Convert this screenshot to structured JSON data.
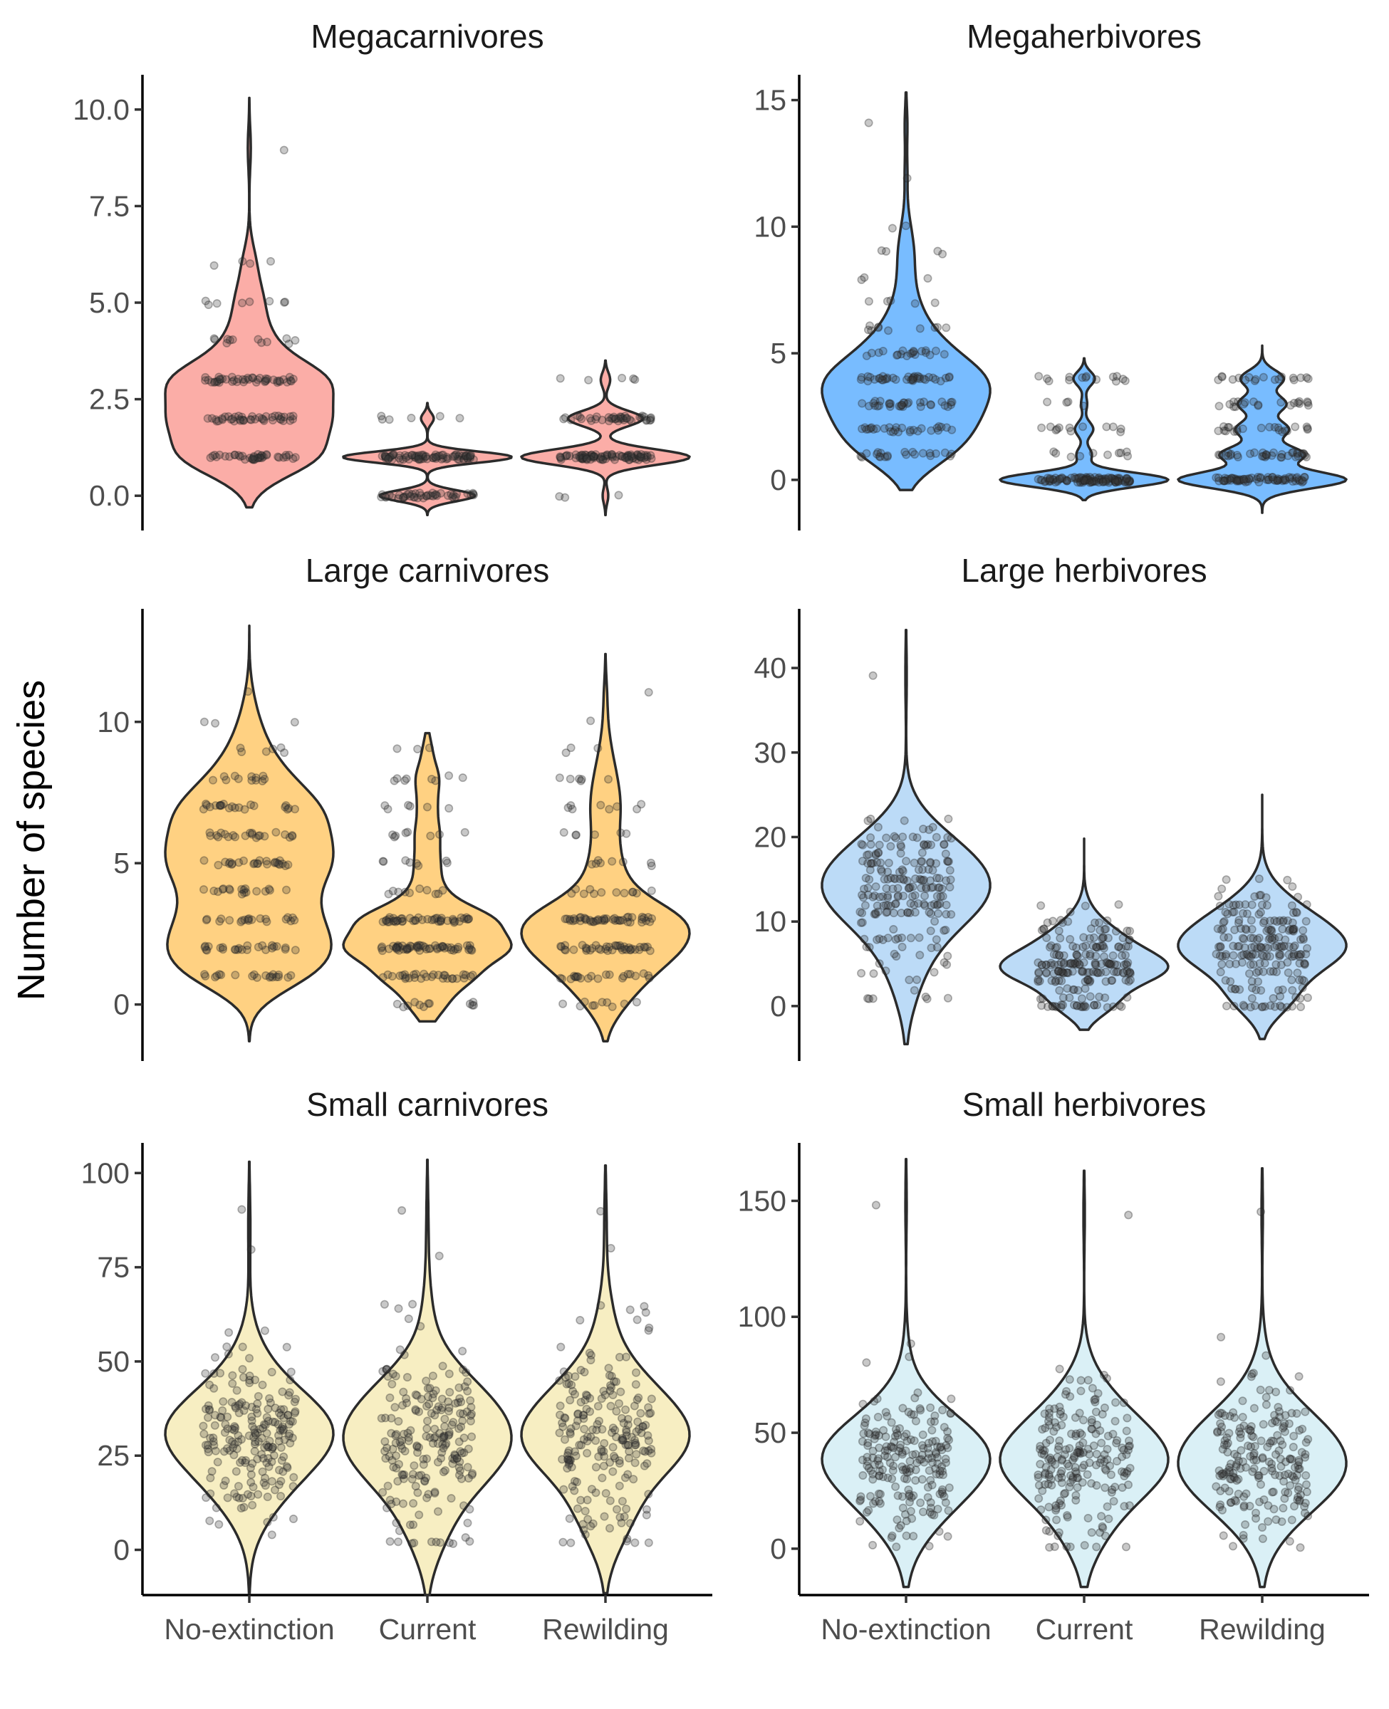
{
  "chart_data": {
    "type": "violin",
    "ylabel": "Number of species",
    "categories": [
      "No-extinction",
      "Current",
      "Rewilding"
    ],
    "grid": false,
    "legend": "none",
    "panels": [
      {
        "title": "Megacarnivores",
        "color": "#F8766D",
        "ylim": [
          -0.9,
          10.9
        ],
        "yticks": [
          0,
          2.5,
          5,
          7.5,
          10
        ],
        "yticklabels": [
          "0.0",
          "2.5",
          "5.0",
          "7.5",
          "10.0"
        ],
        "show_x_labels": false,
        "series": [
          {
            "category": "No-extinction",
            "range": [
              -0.3,
              10.3
            ],
            "counts": {
              "1": 40,
              "2": 42,
              "3": 45,
              "4": 12,
              "5": 8,
              "6": 4,
              "9": 1
            }
          },
          {
            "category": "Current",
            "range": [
              -0.5,
              2.4
            ],
            "counts": {
              "0": 45,
              "1": 80,
              "2": 6
            }
          },
          {
            "category": "Rewilding",
            "range": [
              -0.5,
              3.5
            ],
            "counts": {
              "0": 3,
              "1": 90,
              "2": 40,
              "3": 5
            }
          }
        ]
      },
      {
        "title": "Megaherbivores",
        "color": "#1E90FF",
        "ylim": [
          -2,
          16
        ],
        "yticks": [
          0,
          5,
          10,
          15
        ],
        "yticklabels": [
          "0",
          "5",
          "10",
          "15"
        ],
        "show_x_labels": false,
        "series": [
          {
            "category": "No-extinction",
            "range": [
              -0.4,
              15.3
            ],
            "counts": {
              "1": 22,
              "2": 28,
              "3": 32,
              "4": 38,
              "5": 20,
              "6": 10,
              "7": 5,
              "8": 3,
              "9": 4,
              "10": 2,
              "12": 1,
              "14": 1
            }
          },
          {
            "category": "Current",
            "range": [
              -0.8,
              4.8
            ],
            "counts": {
              "0": 110,
              "1": 10,
              "2": 12,
              "3": 4,
              "4": 14
            }
          },
          {
            "category": "Rewilding",
            "range": [
              -1.3,
              5.3
            ],
            "counts": {
              "0": 70,
              "1": 35,
              "2": 22,
              "3": 20,
              "4": 18
            }
          }
        ]
      },
      {
        "title": "Large carnivores",
        "color": "#FFB32E",
        "ylim": [
          -2,
          14
        ],
        "yticks": [
          0,
          5,
          10
        ],
        "yticklabels": [
          "0",
          "5",
          "10"
        ],
        "show_x_labels": false,
        "series": [
          {
            "category": "No-extinction",
            "range": [
              -1.3,
              13.4
            ],
            "counts": {
              "1": 20,
              "2": 25,
              "3": 20,
              "4": 18,
              "5": 25,
              "6": 22,
              "7": 22,
              "8": 12,
              "9": 6,
              "10": 3,
              "11": 1
            }
          },
          {
            "category": "Current",
            "range": [
              -0.6,
              9.6
            ],
            "counts": {
              "0": 12,
              "1": 30,
              "2": 55,
              "3": 45,
              "4": 10,
              "5": 8,
              "6": 8,
              "7": 6,
              "8": 8,
              "9": 3
            }
          },
          {
            "category": "Rewilding",
            "range": [
              -1.3,
              12.4
            ],
            "counts": {
              "0": 10,
              "1": 22,
              "2": 40,
              "3": 45,
              "4": 12,
              "5": 8,
              "6": 6,
              "7": 8,
              "8": 6,
              "9": 3,
              "10": 1,
              "11": 1
            }
          }
        ]
      },
      {
        "title": "Large herbivores",
        "color": "#8FC3F2",
        "ylim": [
          -6.5,
          47
        ],
        "yticks": [
          0,
          10,
          20,
          30,
          40
        ],
        "yticklabels": [
          "0",
          "10",
          "20",
          "30",
          "40"
        ],
        "show_x_labels": false,
        "series": [
          {
            "category": "No-extinction",
            "range": [
              -4.5,
              44.5
            ],
            "n_points": 210,
            "center": 11,
            "spread": 5,
            "clip": [
              1,
              22
            ],
            "extra": [
              39
            ]
          },
          {
            "category": "Current",
            "range": [
              -2.8,
              19.8
            ],
            "n_points": 210,
            "center": 3,
            "spread": 3.2,
            "clip": [
              0,
              17
            ],
            "extra": []
          },
          {
            "category": "Rewilding",
            "range": [
              -3.9,
              25
            ],
            "n_points": 210,
            "center": 5,
            "spread": 3.8,
            "clip": [
              0,
              21
            ],
            "extra": []
          }
        ]
      },
      {
        "title": "Small carnivores",
        "color": "#F2E39A",
        "ylim": [
          -12,
          108
        ],
        "yticks": [
          0,
          25,
          50,
          75,
          100
        ],
        "yticklabels": [
          "0",
          "25",
          "50",
          "75",
          "100"
        ],
        "show_x_labels": true,
        "series": [
          {
            "category": "No-extinction",
            "range": [
              -11.5,
              103
            ],
            "n_points": 210,
            "center": 24,
            "spread": 12,
            "clip": [
              2,
              65
            ],
            "extra": [
              80,
              90
            ]
          },
          {
            "category": "Current",
            "range": [
              -12,
              103.5
            ],
            "n_points": 210,
            "center": 24,
            "spread": 13,
            "clip": [
              2,
              65
            ],
            "extra": [
              78,
              90
            ]
          },
          {
            "category": "Rewilding",
            "range": [
              -11.5,
              102
            ],
            "n_points": 210,
            "center": 23,
            "spread": 13,
            "clip": [
              2,
              65
            ],
            "extra": [
              80,
              90
            ]
          }
        ]
      },
      {
        "title": "Small herbivores",
        "color": "#C2E6F0",
        "ylim": [
          -20,
          175
        ],
        "yticks": [
          0,
          50,
          100,
          150
        ],
        "yticklabels": [
          "0",
          "50",
          "100",
          "150"
        ],
        "show_x_labels": true,
        "series": [
          {
            "category": "No-extinction",
            "range": [
              -16.5,
              168
            ],
            "n_points": 210,
            "center": 30,
            "spread": 16,
            "clip": [
              1,
              95
            ],
            "extra": [
              148
            ]
          },
          {
            "category": "Current",
            "range": [
              -16.5,
              163
            ],
            "n_points": 210,
            "center": 30,
            "spread": 17,
            "clip": [
              1,
              95
            ],
            "extra": [
              144
            ]
          },
          {
            "category": "Rewilding",
            "range": [
              -16.5,
              164
            ],
            "n_points": 210,
            "center": 30,
            "spread": 17,
            "clip": [
              1,
              95
            ],
            "extra": [
              145
            ]
          }
        ]
      }
    ]
  }
}
